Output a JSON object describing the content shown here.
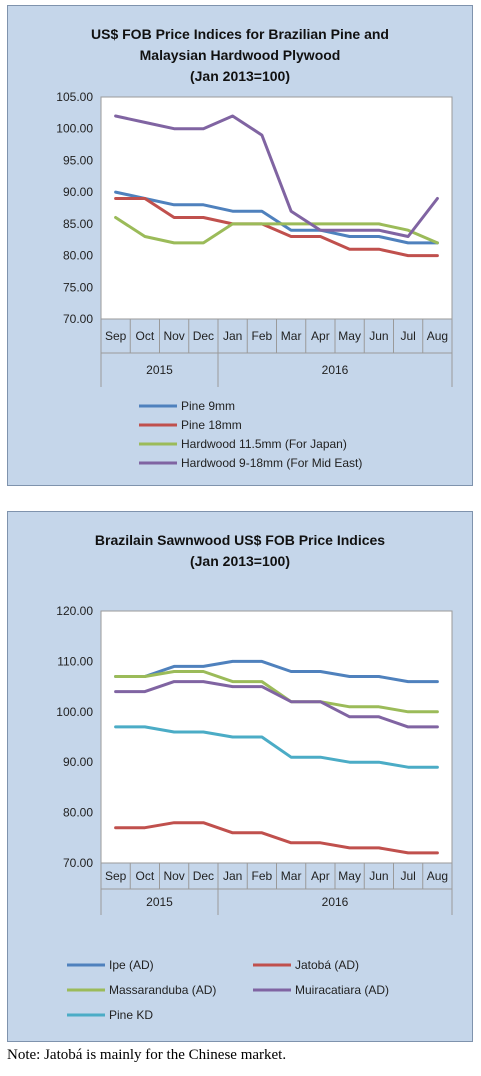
{
  "charts": [
    {
      "title_lines": [
        "US$ FOB Price Indices for Brazilian Pine and",
        "Malaysian Hardwood Plywood",
        "(Jan 2013=100)"
      ]
    },
    {
      "title_lines": [
        "Brazilain Sawnwood US$ FOB Price Indices",
        "(Jan 2013=100)"
      ]
    }
  ],
  "note": "Note: Jatobá is mainly for the Chinese market.",
  "chart_data": [
    {
      "type": "line",
      "title": "US$ FOB Price Indices for Brazilian Pine and Malaysian Hardwood Plywood (Jan 2013=100)",
      "categories": [
        "Sep",
        "Oct",
        "Nov",
        "Dec",
        "Jan",
        "Feb",
        "Mar",
        "Apr",
        "May",
        "Jun",
        "Jul",
        "Aug"
      ],
      "category_groups": [
        {
          "label": "2015",
          "count": 4
        },
        {
          "label": "2016",
          "count": 8
        }
      ],
      "ylim": [
        70,
        105
      ],
      "yticks": [
        "70.00",
        "75.00",
        "80.00",
        "85.00",
        "90.00",
        "95.00",
        "100.00",
        "105.00"
      ],
      "grid": false,
      "legend_position": "bottom",
      "series": [
        {
          "name": "Pine 9mm",
          "color": "#4f81bd",
          "values": [
            90,
            89,
            88,
            88,
            87,
            87,
            84,
            84,
            83,
            83,
            82,
            82
          ]
        },
        {
          "name": "Pine 18mm",
          "color": "#c0504d",
          "values": [
            89,
            89,
            86,
            86,
            85,
            85,
            83,
            83,
            81,
            81,
            80,
            80
          ]
        },
        {
          "name": "Hardwood 11.5mm (For Japan)",
          "color": "#9bbb59",
          "values": [
            86,
            83,
            82,
            82,
            85,
            85,
            85,
            85,
            85,
            85,
            84,
            82
          ]
        },
        {
          "name": "Hardwood 9-18mm (For Mid East)",
          "color": "#8064a2",
          "values": [
            102,
            101,
            100,
            100,
            102,
            99,
            87,
            84,
            84,
            84,
            83,
            89
          ]
        }
      ]
    },
    {
      "type": "line",
      "title": "Brazilain Sawnwood US$ FOB Price Indices (Jan 2013=100)",
      "categories": [
        "Sep",
        "Oct",
        "Nov",
        "Dec",
        "Jan",
        "Feb",
        "Mar",
        "Apr",
        "May",
        "Jun",
        "Jul",
        "Aug"
      ],
      "category_groups": [
        {
          "label": "2015",
          "count": 4
        },
        {
          "label": "2016",
          "count": 8
        }
      ],
      "ylim": [
        70,
        120
      ],
      "yticks": [
        "70.00",
        "80.00",
        "90.00",
        "100.00",
        "110.00",
        "120.00"
      ],
      "grid": false,
      "legend_position": "bottom",
      "series": [
        {
          "name": "Ipe (AD)",
          "color": "#4f81bd",
          "values": [
            107,
            107,
            109,
            109,
            110,
            110,
            108,
            108,
            107,
            107,
            106,
            106
          ]
        },
        {
          "name": "Jatobá (AD)",
          "color": "#c0504d",
          "values": [
            77,
            77,
            78,
            78,
            76,
            76,
            74,
            74,
            73,
            73,
            72,
            72
          ]
        },
        {
          "name": "Massaranduba (AD)",
          "color": "#9bbb59",
          "values": [
            107,
            107,
            108,
            108,
            106,
            106,
            102,
            102,
            101,
            101,
            100,
            100
          ]
        },
        {
          "name": "Muiracatiara (AD)",
          "color": "#8064a2",
          "values": [
            104,
            104,
            106,
            106,
            105,
            105,
            102,
            102,
            99,
            99,
            97,
            97
          ]
        },
        {
          "name": "Pine KD",
          "color": "#4bacc6",
          "values": [
            97,
            97,
            96,
            96,
            95,
            95,
            91,
            91,
            90,
            90,
            89,
            89
          ]
        }
      ]
    }
  ]
}
